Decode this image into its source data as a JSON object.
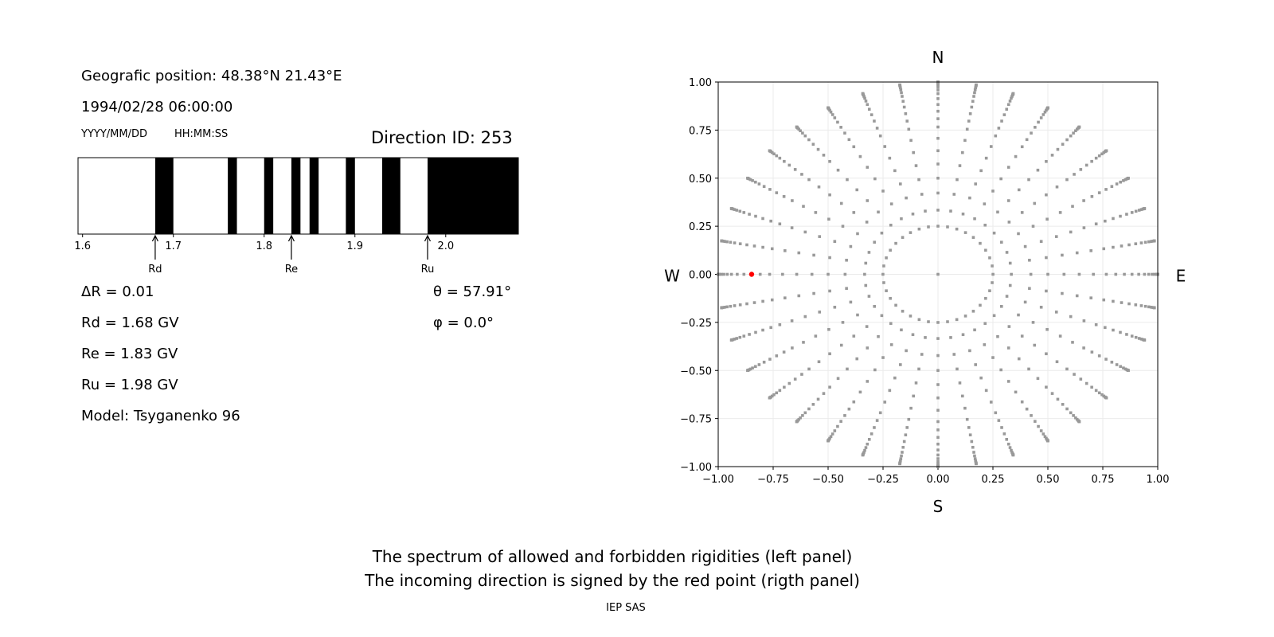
{
  "left_panel": {
    "position": "Geografic position: 48.38°N 21.43°E",
    "datetime": "1994/02/28 06:00:00",
    "date_format": "YYYY/MM/DD",
    "time_format": "HH:MM:SS",
    "direction_id": "Direction ID: 253",
    "delta_r": "ΔR = 0.01",
    "rd": "Rd = 1.68 GV",
    "re": "Re = 1.83 GV",
    "ru": "Ru = 1.98 GV",
    "model": "Model: Tsyganenko 96",
    "theta": "θ = 57.91°",
    "phi": "φ = 0.0°"
  },
  "footer": {
    "line1": "The spectrum of allowed and forbidden rigidities (left panel)",
    "line2": "The incoming direction is signed by the red point (rigth panel)",
    "credit": "IEP SAS"
  },
  "chart_data": [
    {
      "type": "bar",
      "xlim": [
        1.595,
        2.08
      ],
      "xticks": [
        1.6,
        1.7,
        1.8,
        1.9,
        2.0
      ],
      "xtick_labels": [
        "1.6",
        "1.7",
        "1.8",
        "1.9",
        "2.0"
      ],
      "forbidden_bands": [
        [
          1.68,
          1.7
        ],
        [
          1.76,
          1.77
        ],
        [
          1.8,
          1.81
        ],
        [
          1.83,
          1.84
        ],
        [
          1.85,
          1.86
        ],
        [
          1.89,
          1.9
        ],
        [
          1.93,
          1.95
        ],
        [
          1.98,
          2.08
        ]
      ],
      "colors": {
        "forbidden": "#000000",
        "allowed": "#ffffff"
      },
      "annotations": [
        {
          "label": "Rd",
          "x": 1.68
        },
        {
          "label": "Re",
          "x": 1.83
        },
        {
          "label": "Ru",
          "x": 1.98
        }
      ]
    },
    {
      "type": "scatter",
      "xlim": [
        -1,
        1
      ],
      "ylim": [
        -1,
        1
      ],
      "ticks": [
        -1.0,
        -0.75,
        -0.5,
        -0.25,
        0.0,
        0.25,
        0.5,
        0.75,
        1.0
      ],
      "tick_labels": [
        "−1.00",
        "−0.75",
        "−0.50",
        "−0.25",
        "0.00",
        "0.25",
        "0.50",
        "0.75",
        "1.00"
      ],
      "grid": true,
      "compass": {
        "north": "N",
        "south": "S",
        "west": "W",
        "east": "E"
      },
      "directions": {
        "azimuth_step_deg": 10,
        "zenith_deg": [
          0,
          14.5,
          19.5,
          25,
          30,
          35,
          40,
          45,
          50,
          54,
          58,
          62,
          66,
          70,
          73.5,
          77,
          80,
          83,
          85.5,
          87.5,
          89,
          90
        ]
      },
      "point_color": "#999999",
      "highlight": {
        "x": -0.848,
        "y": 0.0,
        "color": "#ff0000"
      }
    }
  ]
}
